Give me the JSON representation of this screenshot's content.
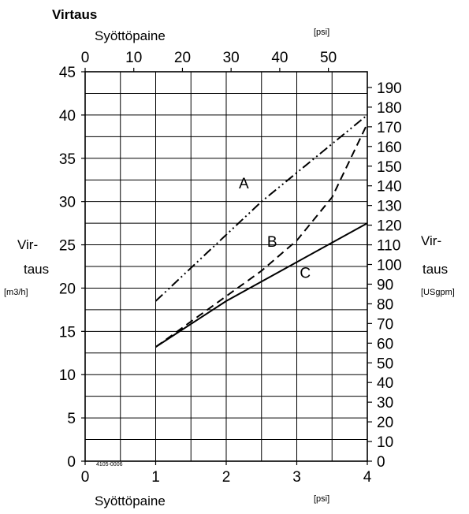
{
  "chart_data": {
    "type": "line",
    "title": "Virtaus",
    "figure_code": "4105-0006",
    "bottom_axis": {
      "label": "Syöttöpaine",
      "unit": "[psi]",
      "range": [
        0,
        4
      ],
      "ticks": [
        "0",
        "1",
        "2",
        "3",
        "4"
      ]
    },
    "top_axis": {
      "label": "Syöttöpaine",
      "unit": "[psi]",
      "range": [
        0,
        58
      ],
      "ticks": [
        "0",
        "10",
        "20",
        "30",
        "40",
        "50"
      ]
    },
    "left_axis": {
      "label_line1": "Vir-",
      "label_line2": "taus",
      "unit": "[m3/h]",
      "range": [
        0,
        45
      ],
      "ticks": [
        "0",
        "5",
        "10",
        "15",
        "20",
        "25",
        "30",
        "35",
        "40",
        "45"
      ]
    },
    "right_axis": {
      "label_line1": "Vir-",
      "label_line2": "taus",
      "unit": "[USgpm]",
      "range": [
        0,
        198
      ],
      "ticks": [
        "0",
        "10",
        "20",
        "30",
        "40",
        "50",
        "60",
        "70",
        "80",
        "90",
        "100",
        "110",
        "120",
        "130",
        "140",
        "150",
        "160",
        "170",
        "180",
        "190"
      ]
    },
    "grid": true,
    "series": [
      {
        "name": "A",
        "style": "dash-dot-dot",
        "points": [
          [
            1.0,
            18.5
          ],
          [
            2.5,
            30.0
          ],
          [
            4.0,
            40.0
          ]
        ]
      },
      {
        "name": "B",
        "style": "dashed",
        "points": [
          [
            1.0,
            13.2
          ],
          [
            2.5,
            22.0
          ],
          [
            3.0,
            25.5
          ],
          [
            3.5,
            30.5
          ],
          [
            4.0,
            39.0
          ]
        ]
      },
      {
        "name": "C",
        "style": "solid",
        "points": [
          [
            1.0,
            13.2
          ],
          [
            2.0,
            18.5
          ],
          [
            3.0,
            23.0
          ],
          [
            4.0,
            27.5
          ]
        ]
      }
    ]
  }
}
